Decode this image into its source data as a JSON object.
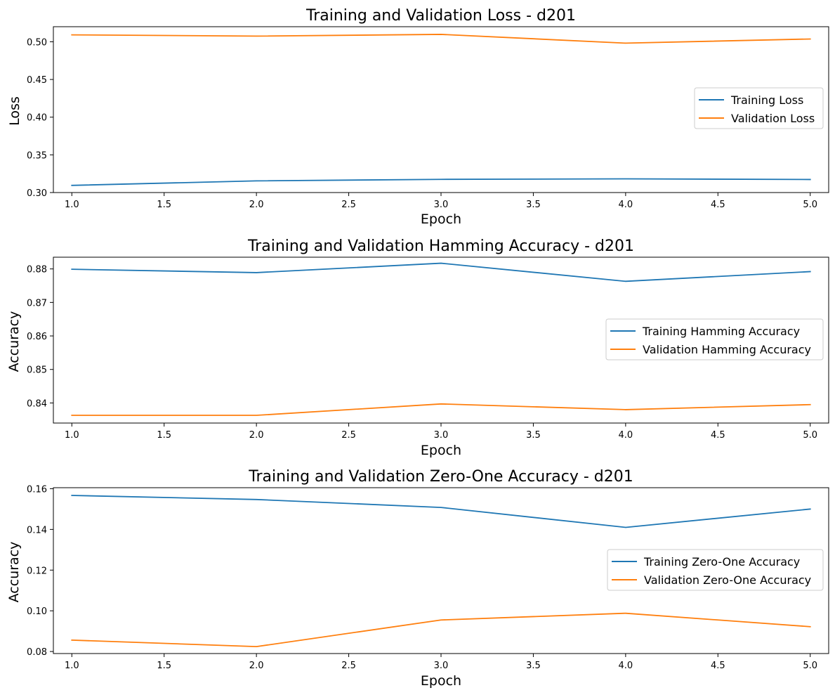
{
  "palette": {
    "training": "#1f77b4",
    "validation": "#ff7f0e"
  },
  "chart_data": [
    {
      "type": "line",
      "title": "Training and Validation Loss - d201",
      "xlabel": "Epoch",
      "ylabel": "Loss",
      "x": [
        1.0,
        2.0,
        3.0,
        4.0,
        5.0
      ],
      "xlim": [
        0.9,
        5.1
      ],
      "ylim": [
        0.3,
        0.52
      ],
      "xticks": [
        "1.0",
        "1.5",
        "2.0",
        "2.5",
        "3.0",
        "3.5",
        "4.0",
        "4.5",
        "5.0"
      ],
      "yticks": [
        "0.30",
        "0.35",
        "0.40",
        "0.45",
        "0.50"
      ],
      "legend_position": "center-right",
      "series": [
        {
          "name": "Training Loss",
          "color": "#1f77b4",
          "values": [
            0.3095,
            0.3155,
            0.3175,
            0.3182,
            0.3173
          ]
        },
        {
          "name": "Validation Loss",
          "color": "#ff7f0e",
          "values": [
            0.5092,
            0.5075,
            0.5098,
            0.4982,
            0.5037
          ]
        }
      ]
    },
    {
      "type": "line",
      "title": "Training and Validation Hamming Accuracy - d201",
      "xlabel": "Epoch",
      "ylabel": "Accuracy",
      "x": [
        1.0,
        2.0,
        3.0,
        4.0,
        5.0
      ],
      "xlim": [
        0.9,
        5.1
      ],
      "ylim": [
        0.834,
        0.8835
      ],
      "xticks": [
        "1.0",
        "1.5",
        "2.0",
        "2.5",
        "3.0",
        "3.5",
        "4.0",
        "4.5",
        "5.0"
      ],
      "yticks": [
        "0.84",
        "0.85",
        "0.86",
        "0.87",
        "0.88"
      ],
      "legend_position": "center-right",
      "series": [
        {
          "name": "Training Hamming Accuracy",
          "color": "#1f77b4",
          "values": [
            0.8799,
            0.8789,
            0.8817,
            0.8763,
            0.8792
          ]
        },
        {
          "name": "Validation Hamming Accuracy",
          "color": "#ff7f0e",
          "values": [
            0.8363,
            0.8363,
            0.8397,
            0.838,
            0.8395
          ]
        }
      ]
    },
    {
      "type": "line",
      "title": "Training and Validation Zero-One Accuracy - d201",
      "xlabel": "Epoch",
      "ylabel": "Accuracy",
      "x": [
        1.0,
        2.0,
        3.0,
        4.0,
        5.0
      ],
      "xlim": [
        0.9,
        5.1
      ],
      "ylim": [
        0.079,
        0.1605
      ],
      "xticks": [
        "1.0",
        "1.5",
        "2.0",
        "2.5",
        "3.0",
        "3.5",
        "4.0",
        "4.5",
        "5.0"
      ],
      "yticks": [
        "0.08",
        "0.10",
        "0.12",
        "0.14",
        "0.16"
      ],
      "legend_position": "center-right",
      "series": [
        {
          "name": "Training Zero-One Accuracy",
          "color": "#1f77b4",
          "values": [
            0.1567,
            0.1547,
            0.1508,
            0.141,
            0.15
          ]
        },
        {
          "name": "Validation Zero-One Accuracy",
          "color": "#ff7f0e",
          "values": [
            0.0856,
            0.0824,
            0.0955,
            0.0988,
            0.0922
          ]
        }
      ]
    }
  ]
}
